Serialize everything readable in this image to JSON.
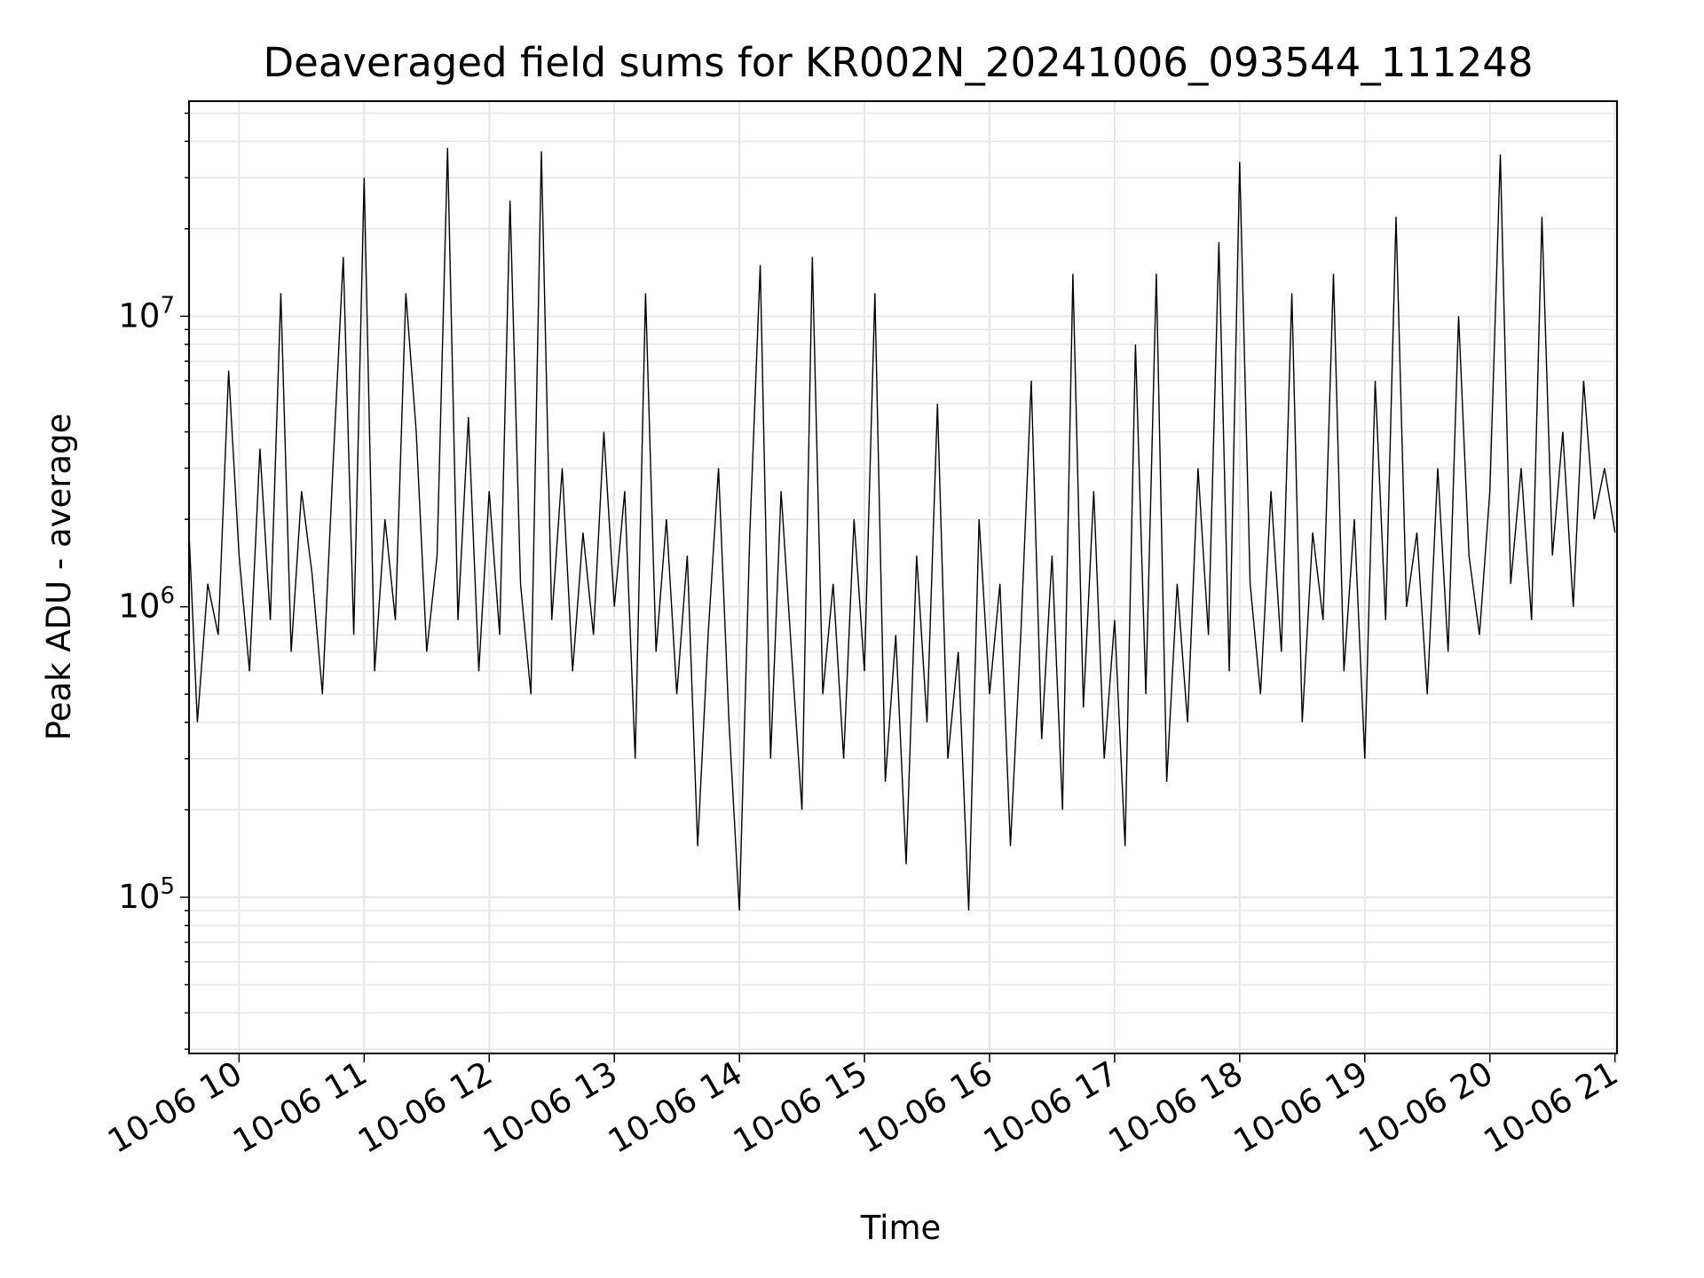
{
  "chart_data": {
    "type": "line",
    "title": "Deaveraged field sums for KR002N_20241006_093544_111248",
    "xlabel": "Time",
    "ylabel": "Peak ADU - average",
    "yscale": "log",
    "grid": true,
    "line_color": "#000000",
    "xlim": [
      "2024-10-06T09:36",
      "2024-10-06T21:01"
    ],
    "ylim": [
      29000,
      55000000
    ],
    "x_ticks": [
      {
        "value": "2024-10-06T10:00",
        "label": "10-06 10"
      },
      {
        "value": "2024-10-06T11:00",
        "label": "10-06 11"
      },
      {
        "value": "2024-10-06T12:00",
        "label": "10-06 12"
      },
      {
        "value": "2024-10-06T13:00",
        "label": "10-06 13"
      },
      {
        "value": "2024-10-06T14:00",
        "label": "10-06 14"
      },
      {
        "value": "2024-10-06T15:00",
        "label": "10-06 15"
      },
      {
        "value": "2024-10-06T16:00",
        "label": "10-06 16"
      },
      {
        "value": "2024-10-06T17:00",
        "label": "10-06 17"
      },
      {
        "value": "2024-10-06T18:00",
        "label": "10-06 18"
      },
      {
        "value": "2024-10-06T19:00",
        "label": "10-06 19"
      },
      {
        "value": "2024-10-06T20:00",
        "label": "10-06 20"
      },
      {
        "value": "2024-10-06T21:00",
        "label": "10-06 21"
      }
    ],
    "y_ticks": [
      {
        "value": 100000,
        "base": "10",
        "exp": "5"
      },
      {
        "value": 1000000,
        "base": "10",
        "exp": "6"
      },
      {
        "value": 10000000,
        "base": "10",
        "exp": "7"
      }
    ],
    "series": [
      {
        "x": [
          "2024-10-06T09:36",
          "2024-10-06T09:40",
          "2024-10-06T09:45",
          "2024-10-06T09:50",
          "2024-10-06T09:55",
          "2024-10-06T10:00",
          "2024-10-06T10:05",
          "2024-10-06T10:10",
          "2024-10-06T10:15",
          "2024-10-06T10:20",
          "2024-10-06T10:25",
          "2024-10-06T10:30",
          "2024-10-06T10:35",
          "2024-10-06T10:40",
          "2024-10-06T10:45",
          "2024-10-06T10:50",
          "2024-10-06T10:55",
          "2024-10-06T11:00",
          "2024-10-06T11:05",
          "2024-10-06T11:10",
          "2024-10-06T11:15",
          "2024-10-06T11:20",
          "2024-10-06T11:25",
          "2024-10-06T11:30",
          "2024-10-06T11:35",
          "2024-10-06T11:40",
          "2024-10-06T11:45",
          "2024-10-06T11:50",
          "2024-10-06T11:55",
          "2024-10-06T12:00",
          "2024-10-06T12:05",
          "2024-10-06T12:10",
          "2024-10-06T12:15",
          "2024-10-06T12:20",
          "2024-10-06T12:25",
          "2024-10-06T12:30",
          "2024-10-06T12:35",
          "2024-10-06T12:40",
          "2024-10-06T12:45",
          "2024-10-06T12:50",
          "2024-10-06T12:55",
          "2024-10-06T13:00",
          "2024-10-06T13:05",
          "2024-10-06T13:10",
          "2024-10-06T13:15",
          "2024-10-06T13:20",
          "2024-10-06T13:25",
          "2024-10-06T13:30",
          "2024-10-06T13:35",
          "2024-10-06T13:40",
          "2024-10-06T13:45",
          "2024-10-06T13:50",
          "2024-10-06T13:55",
          "2024-10-06T14:00",
          "2024-10-06T14:05",
          "2024-10-06T14:10",
          "2024-10-06T14:15",
          "2024-10-06T14:20",
          "2024-10-06T14:25",
          "2024-10-06T14:30",
          "2024-10-06T14:35",
          "2024-10-06T14:40",
          "2024-10-06T14:45",
          "2024-10-06T14:50",
          "2024-10-06T14:55",
          "2024-10-06T15:00",
          "2024-10-06T15:05",
          "2024-10-06T15:10",
          "2024-10-06T15:15",
          "2024-10-06T15:20",
          "2024-10-06T15:25",
          "2024-10-06T15:30",
          "2024-10-06T15:35",
          "2024-10-06T15:40",
          "2024-10-06T15:45",
          "2024-10-06T15:50",
          "2024-10-06T15:55",
          "2024-10-06T16:00",
          "2024-10-06T16:05",
          "2024-10-06T16:10",
          "2024-10-06T16:15",
          "2024-10-06T16:20",
          "2024-10-06T16:25",
          "2024-10-06T16:30",
          "2024-10-06T16:35",
          "2024-10-06T16:40",
          "2024-10-06T16:45",
          "2024-10-06T16:50",
          "2024-10-06T16:55",
          "2024-10-06T17:00",
          "2024-10-06T17:05",
          "2024-10-06T17:10",
          "2024-10-06T17:15",
          "2024-10-06T17:20",
          "2024-10-06T17:25",
          "2024-10-06T17:30",
          "2024-10-06T17:35",
          "2024-10-06T17:40",
          "2024-10-06T17:45",
          "2024-10-06T17:50",
          "2024-10-06T17:55",
          "2024-10-06T18:00",
          "2024-10-06T18:05",
          "2024-10-06T18:10",
          "2024-10-06T18:15",
          "2024-10-06T18:20",
          "2024-10-06T18:25",
          "2024-10-06T18:30",
          "2024-10-06T18:35",
          "2024-10-06T18:40",
          "2024-10-06T18:45",
          "2024-10-06T18:50",
          "2024-10-06T18:55",
          "2024-10-06T19:00",
          "2024-10-06T19:05",
          "2024-10-06T19:10",
          "2024-10-06T19:15",
          "2024-10-06T19:20",
          "2024-10-06T19:25",
          "2024-10-06T19:30",
          "2024-10-06T19:35",
          "2024-10-06T19:40",
          "2024-10-06T19:45",
          "2024-10-06T19:50",
          "2024-10-06T19:55",
          "2024-10-06T20:00",
          "2024-10-06T20:05",
          "2024-10-06T20:10",
          "2024-10-06T20:15",
          "2024-10-06T20:20",
          "2024-10-06T20:25",
          "2024-10-06T20:30",
          "2024-10-06T20:35",
          "2024-10-06T20:40",
          "2024-10-06T20:45",
          "2024-10-06T20:50",
          "2024-10-06T20:55",
          "2024-10-06T21:00"
        ],
        "y": [
          1800000,
          400000,
          1200000,
          800000,
          6500000,
          1500000,
          600000,
          3500000,
          900000,
          12000000,
          700000,
          2500000,
          1300000,
          500000,
          3000000,
          16000000,
          800000,
          30000000,
          600000,
          2000000,
          900000,
          12000000,
          4000000,
          700000,
          1500000,
          38000000,
          900000,
          4500000,
          600000,
          2500000,
          800000,
          25000000,
          1200000,
          500000,
          37000000,
          900000,
          3000000,
          600000,
          1800000,
          800000,
          4000000,
          1000000,
          2500000,
          300000,
          12000000,
          700000,
          2000000,
          500000,
          1500000,
          150000,
          800000,
          3000000,
          400000,
          90000,
          1800000,
          15000000,
          300000,
          2500000,
          700000,
          200000,
          16000000,
          500000,
          1200000,
          300000,
          2000000,
          600000,
          12000000,
          250000,
          800000,
          130000,
          1500000,
          400000,
          5000000,
          300000,
          700000,
          90000,
          2000000,
          500000,
          1200000,
          150000,
          800000,
          6000000,
          350000,
          1500000,
          200000,
          14000000,
          450000,
          2500000,
          300000,
          900000,
          150000,
          8000000,
          500000,
          14000000,
          250000,
          1200000,
          400000,
          3000000,
          800000,
          18000000,
          600000,
          34000000,
          1200000,
          500000,
          2500000,
          700000,
          12000000,
          400000,
          1800000,
          900000,
          14000000,
          600000,
          2000000,
          300000,
          6000000,
          900000,
          22000000,
          1000000,
          1800000,
          500000,
          3000000,
          700000,
          10000000,
          1500000,
          800000,
          2500000,
          36000000,
          1200000,
          3000000,
          900000,
          22000000,
          1500000,
          4000000,
          1000000,
          6000000,
          2000000,
          3000000,
          1800000
        ]
      }
    ]
  }
}
